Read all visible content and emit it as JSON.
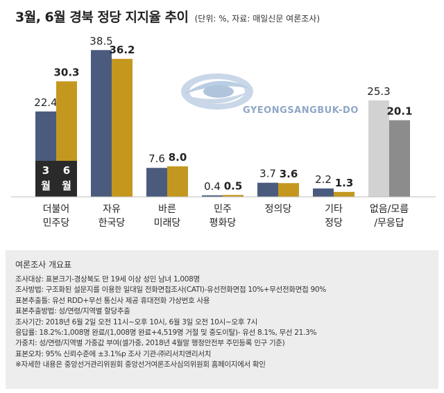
{
  "header": {
    "title": "3월, 6월 경북 정당 지지율 추이",
    "subtitle": "(단위: %, 자료: 매일신문 여론조사)"
  },
  "logo": {
    "text": "GYEONGSANGBUK-DO"
  },
  "chart_data": {
    "type": "bar",
    "title": "3월, 6월 경북 정당 지지율 추이",
    "unit": "%",
    "categories": [
      [
        "더불어",
        "민주당"
      ],
      [
        "자유",
        "한국당"
      ],
      [
        "바른",
        "미래당"
      ],
      [
        "민주",
        "평화당"
      ],
      [
        "정의당"
      ],
      [
        "기타",
        "정당"
      ],
      [
        "없음/모름",
        "/무응답"
      ]
    ],
    "series": [
      {
        "name": "3월",
        "values": [
          22.4,
          38.5,
          7.6,
          0.4,
          3.7,
          2.2,
          25.3
        ],
        "labels": [
          "22.4",
          "38.5",
          "7.6",
          "0.4",
          "3.7",
          "2.2",
          "25.3"
        ]
      },
      {
        "name": "6월",
        "values": [
          30.3,
          36.2,
          8.0,
          0.5,
          3.6,
          1.3,
          20.1
        ],
        "labels": [
          "30.3",
          "36.2",
          "8.0",
          "0.5",
          "3.6",
          "1.3",
          "20.1"
        ]
      }
    ],
    "colors": {
      "march": "#4a5b7e",
      "june": "#c4981f",
      "none_march": "#d2d2d2",
      "none_june": "#8c8c8c",
      "legend_bg": "#2a2a2a",
      "legend_text": "#ffffff"
    },
    "legend_placement": "inside first bar group"
  },
  "survey": {
    "title": "여론조사 개요표",
    "lines": [
      "조사대상: 표본크기-경상북도 만 19세 이상 성인 남녀 1,008명",
      "조사방법: 구조화된 설문지를 이용한 일대일 전화면접조사(CATI)-유선전화면접 10%+무선전화면접 90%",
      "표본추출틀: 유선 RDD+무선 통신사 제공 휴대전화 가상번호 사용",
      "표본추출방법: 성/연령/지역별 할당추출",
      "조사기간: 2018년 6월 2일 오전 11시~오후 10시, 6월 3일 오전 10시~오후 7시",
      "응답률: 18.2%:1,008명 완료/(1,008명 완료+4,519명 거절 및 중도이탈)- 유선 8.1%, 무선 21.3%",
      "가중치: 성/연령/지역별 가중값 부여(셀가중, 2018년 4월말 행정안전부 주민등록 인구 기준)",
      "표본오차: 95% 신뢰수준에 ±3.1%p 조사 기관-㈜리서치앤리서치",
      "※자세한 내용은 중앙선거관리위원회 중앙선거여론조사심의위원회 홈페이지에서 확인"
    ]
  }
}
